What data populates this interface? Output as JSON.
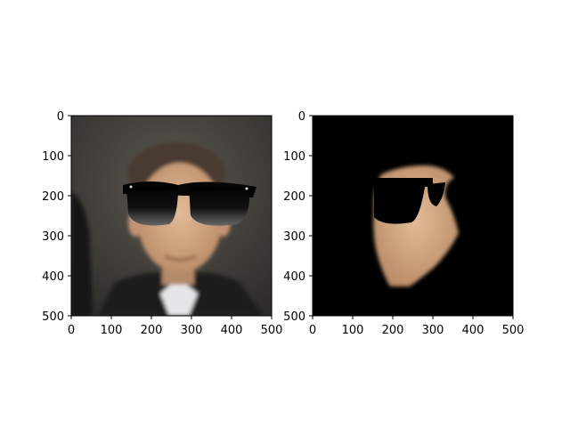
{
  "panels": [
    {
      "name": "left",
      "content": "photo of man in suit wearing sunglasses overlay",
      "xticks": [
        "0",
        "100",
        "200",
        "300",
        "400",
        "500"
      ],
      "yticks": [
        "0",
        "100",
        "200",
        "300",
        "400",
        "500"
      ]
    },
    {
      "name": "right",
      "content": "masked face region with sunglasses on black background",
      "xticks": [
        "0",
        "100",
        "200",
        "300",
        "400",
        "500"
      ],
      "yticks": [
        "0",
        "100",
        "200",
        "300",
        "400",
        "500"
      ]
    }
  ],
  "colors": {
    "background": "#ffffff",
    "mask_bg": "#000000",
    "skin": "#c99a78",
    "hair": "#4a3b30",
    "suit": "#1b1b1b",
    "shirt": "#e6e6e8"
  }
}
